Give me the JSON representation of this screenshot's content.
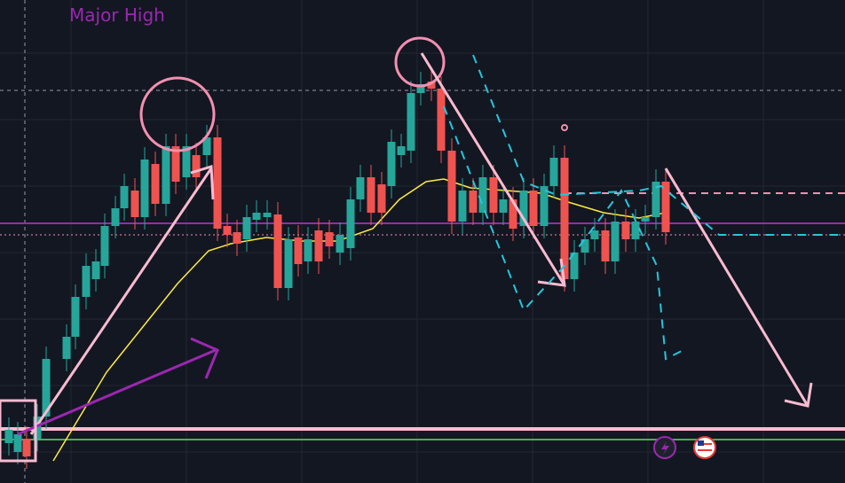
{
  "chart_label": {
    "text": "Major High"
  }
}
